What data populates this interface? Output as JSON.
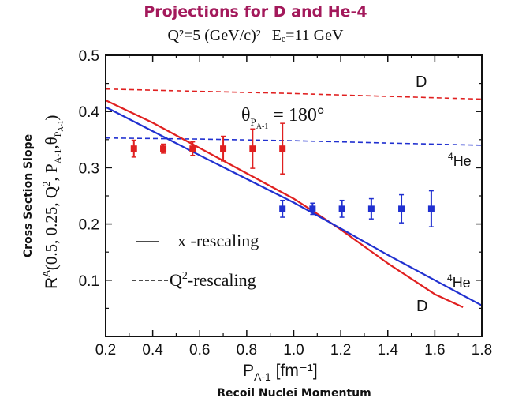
{
  "title": "Projections for D and He-4",
  "subtitle": {
    "q2": "Q²=5 (GeV/c)²",
    "ee": "Eₑ=11 GeV"
  },
  "axes": {
    "xlabel_main": "P",
    "xlabel_sub": "A-1",
    "xlabel_unit": " [fm⁻¹]",
    "xlabel_caption": "Recoil Nuclei Momentum",
    "ylabel_caption": "Cross Section Slope",
    "ylabel_R": "R",
    "ylabel_sup": "A",
    "ylabel_args": "(0.5, 0.25, Q",
    "ylabel_args2": ", P",
    "ylabel_sub1": "A-1",
    "ylabel_theta": ",θ",
    "ylabel_sub2": "P",
    "ylabel_sub3": "A-1",
    "ylabel_close": ")"
  },
  "annotation": {
    "theta": "θ",
    "theta_sub": "P",
    "theta_sub2": "A-1",
    "value": " = 180°"
  },
  "legend": {
    "solid_label": "x -rescaling",
    "dashed_label_pre": "Q",
    "dashed_label_sup": "2",
    "dashed_label_post": "-rescaling"
  },
  "curve_labels": {
    "d_top": "D",
    "he_mid_sup": "4",
    "he_mid": "He",
    "he_low_sup": "4",
    "he_low": "He",
    "d_low": "D"
  },
  "colors": {
    "deuteron": "#e02020",
    "helium": "#2030d0",
    "title": "#a3195b",
    "axis": "#111111"
  },
  "chart_data": {
    "type": "line",
    "xlim": [
      0.2,
      1.8
    ],
    "ylim": [
      0.0,
      0.5
    ],
    "xticks": [
      0.2,
      0.4,
      0.6,
      0.8,
      1.0,
      1.2,
      1.4,
      1.6,
      1.8
    ],
    "xtick_labels": [
      "0.2",
      "0.4",
      "0.6",
      "0.8",
      "1.0",
      "1.2",
      "1.4",
      "1.6",
      "1.8"
    ],
    "yticks": [
      0.1,
      0.2,
      0.3,
      0.4,
      0.5
    ],
    "ytick_labels": [
      "0.1",
      "0.2",
      "0.3",
      "0.4",
      "0.5"
    ],
    "series": [
      {
        "name": "D",
        "style": "solid",
        "color": "#e02020",
        "x": [
          0.2,
          0.4,
          0.6,
          0.8,
          1.0,
          1.1,
          1.2,
          1.4,
          1.6,
          1.72
        ],
        "y": [
          0.42,
          0.38,
          0.335,
          0.29,
          0.245,
          0.218,
          0.19,
          0.13,
          0.075,
          0.052
        ]
      },
      {
        "name": "He-4",
        "style": "solid",
        "color": "#2030d0",
        "x": [
          0.2,
          0.4,
          0.6,
          0.8,
          1.0,
          1.1,
          1.2,
          1.4,
          1.6,
          1.8
        ],
        "y": [
          0.408,
          0.365,
          0.322,
          0.28,
          0.238,
          0.215,
          0.192,
          0.145,
          0.1,
          0.055
        ]
      },
      {
        "name": "D",
        "style": "dashed",
        "color": "#e02020",
        "x": [
          0.2,
          0.6,
          1.0,
          1.4,
          1.8
        ],
        "y": [
          0.44,
          0.436,
          0.432,
          0.427,
          0.422
        ]
      },
      {
        "name": "He-4",
        "style": "dashed",
        "color": "#2030d0",
        "x": [
          0.2,
          0.6,
          1.0,
          1.4,
          1.8
        ],
        "y": [
          0.353,
          0.351,
          0.348,
          0.344,
          0.34
        ]
      },
      {
        "name": "D",
        "style": "points",
        "color": "#e02020",
        "x": [
          0.32,
          0.445,
          0.57,
          0.7,
          0.825,
          0.952
        ],
        "y": [
          0.334,
          0.334,
          0.334,
          0.334,
          0.334,
          0.334
        ],
        "err": [
          0.015,
          0.008,
          0.012,
          0.022,
          0.035,
          0.045
        ]
      },
      {
        "name": "He-4",
        "style": "points",
        "color": "#2030d0",
        "x": [
          0.952,
          1.08,
          1.205,
          1.33,
          1.458,
          1.585
        ],
        "y": [
          0.227,
          0.227,
          0.227,
          0.227,
          0.227,
          0.227
        ],
        "err": [
          0.015,
          0.01,
          0.015,
          0.018,
          0.025,
          0.032
        ]
      }
    ]
  }
}
